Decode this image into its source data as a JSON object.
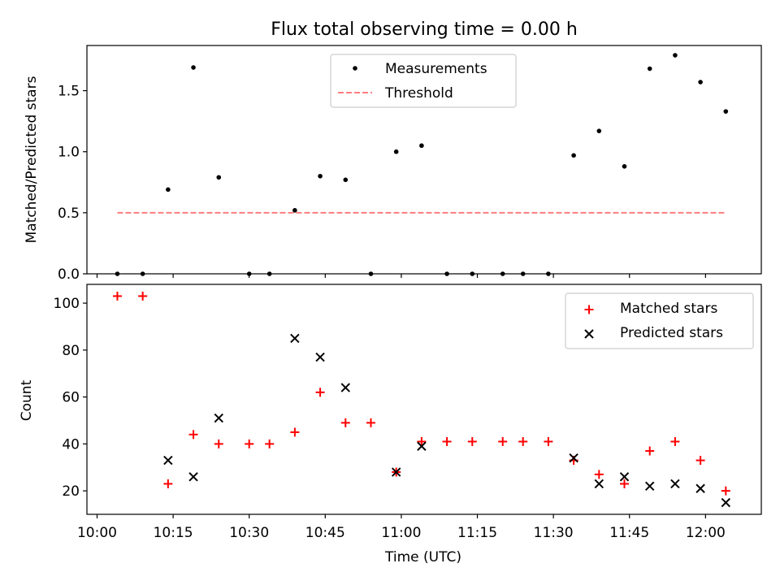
{
  "title": "Flux total observing time = 0.00 h",
  "chart_data": [
    {
      "type": "scatter",
      "panel": "top",
      "title": "Flux total observing time = 0.00 h",
      "xlabel": "",
      "ylabel": "Matched/Predicted stars",
      "xlim": [
        "09:58",
        "12:11"
      ],
      "ylim": [
        0,
        1.87
      ],
      "yticks": [
        0.0,
        0.5,
        1.0,
        1.5
      ],
      "ytick_labels": [
        "0.0",
        "0.5",
        "1.0",
        "1.5"
      ],
      "legend_position": "top-center",
      "series": [
        {
          "name": "Measurements",
          "marker": "dot",
          "color": "#000000",
          "x": [
            "10:04",
            "10:09",
            "10:14",
            "10:19",
            "10:24",
            "10:30",
            "10:34",
            "10:39",
            "10:44",
            "10:49",
            "10:54",
            "10:59",
            "11:04",
            "11:09",
            "11:14",
            "11:20",
            "11:24",
            "11:29",
            "11:34",
            "11:39",
            "11:44",
            "11:49",
            "11:54",
            "11:59",
            "12:04"
          ],
          "y": [
            0,
            0,
            0.69,
            1.69,
            0.79,
            0,
            0,
            0.52,
            0.8,
            0.77,
            0,
            1.0,
            1.05,
            0,
            0,
            0,
            0,
            0,
            0.97,
            1.17,
            0.88,
            1.68,
            1.79,
            1.57,
            1.33
          ]
        },
        {
          "name": "Threshold",
          "style": "dashed",
          "color": "#ff7f7f",
          "x": [
            "10:04",
            "12:04"
          ],
          "y": [
            0.5,
            0.5
          ]
        }
      ]
    },
    {
      "type": "scatter",
      "panel": "bottom",
      "xlabel": "Time (UTC)",
      "ylabel": "Count",
      "xlim": [
        "09:58",
        "12:11"
      ],
      "ylim": [
        10,
        108
      ],
      "xticks": [
        "10:00",
        "10:15",
        "10:30",
        "10:45",
        "11:00",
        "11:15",
        "11:30",
        "11:45",
        "12:00"
      ],
      "yticks": [
        20,
        40,
        60,
        80,
        100
      ],
      "ytick_labels": [
        "20",
        "40",
        "60",
        "80",
        "100"
      ],
      "legend_position": "top-right",
      "series": [
        {
          "name": "Matched stars",
          "marker": "plus",
          "color": "#ff0000",
          "x": [
            "10:04",
            "10:09",
            "10:14",
            "10:19",
            "10:24",
            "10:30",
            "10:34",
            "10:39",
            "10:44",
            "10:49",
            "10:54",
            "10:59",
            "11:04",
            "11:09",
            "11:14",
            "11:20",
            "11:24",
            "11:29",
            "11:34",
            "11:39",
            "11:44",
            "11:49",
            "11:54",
            "11:59",
            "12:04"
          ],
          "y": [
            103,
            103,
            23,
            44,
            40,
            40,
            40,
            45,
            62,
            49,
            49,
            28,
            41,
            41,
            41,
            41,
            41,
            41,
            33,
            27,
            23,
            37,
            41,
            33,
            20
          ]
        },
        {
          "name": "Predicted stars",
          "marker": "x",
          "color": "#000000",
          "x": [
            "10:14",
            "10:19",
            "10:24",
            "10:39",
            "10:44",
            "10:49",
            "10:59",
            "11:04",
            "11:34",
            "11:39",
            "11:44",
            "11:49",
            "11:54",
            "11:59",
            "12:04"
          ],
          "y": [
            33,
            26,
            51,
            85,
            77,
            64,
            28,
            39,
            34,
            23,
            26,
            22,
            23,
            21,
            15
          ]
        }
      ]
    }
  ]
}
